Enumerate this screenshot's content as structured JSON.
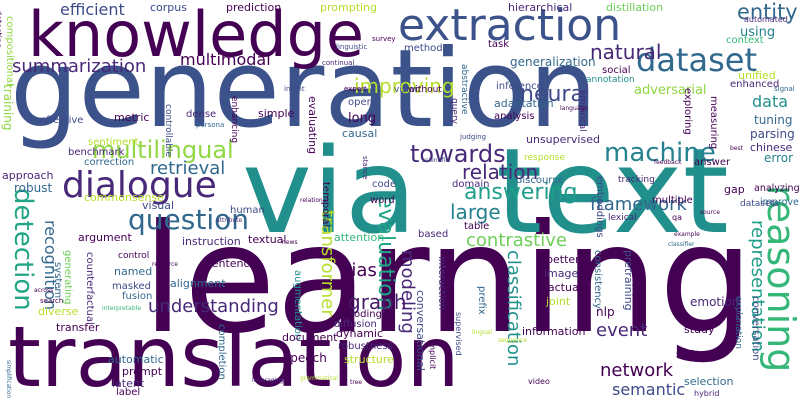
{
  "words": [
    {
      "text": "learning",
      "color": "#440154"
    },
    {
      "text": "generation",
      "color": "#3b528b"
    },
    {
      "text": "translation",
      "color": "#440154"
    },
    {
      "text": "via",
      "color": "#21908d"
    },
    {
      "text": "text",
      "color": "#21908d"
    },
    {
      "text": "knowledge",
      "color": "#440154"
    },
    {
      "text": "extraction",
      "color": "#3b528b"
    },
    {
      "text": "dialogue",
      "color": "#482878"
    },
    {
      "text": "question",
      "color": "#31688e"
    },
    {
      "text": "reasoning",
      "color": "#35b779"
    },
    {
      "text": "dataset",
      "color": "#31688e"
    },
    {
      "text": "machine",
      "color": "#26828e"
    },
    {
      "text": "multilingual",
      "color": "#90d743"
    },
    {
      "text": "summarization",
      "color": "#482878"
    },
    {
      "text": "towards",
      "color": "#482878"
    },
    {
      "text": "detection",
      "color": "#21a585"
    },
    {
      "text": "efficient",
      "color": "#3e4a89"
    },
    {
      "text": "entity",
      "color": "#31688e"
    },
    {
      "text": "answering",
      "color": "#1f9e89"
    },
    {
      "text": "relation",
      "color": "#482878"
    },
    {
      "text": "improving",
      "color": "#b5de2b"
    },
    {
      "text": "natural",
      "color": "#482878"
    },
    {
      "text": "neural",
      "color": "#3e4a89"
    },
    {
      "text": "evaluation",
      "color": "#21a585"
    },
    {
      "text": "large",
      "color": "#26828e"
    },
    {
      "text": "contrastive",
      "color": "#6ece58"
    },
    {
      "text": "framework",
      "color": "#31688e"
    },
    {
      "text": "retrieval",
      "color": "#31688e"
    },
    {
      "text": "multimodal",
      "color": "#440154"
    },
    {
      "text": "representation",
      "color": "#1f9e89"
    },
    {
      "text": "classification",
      "color": "#21918c"
    },
    {
      "text": "modeling",
      "color": "#482878"
    },
    {
      "text": "graph",
      "color": "#481a6c"
    },
    {
      "text": "understanding",
      "color": "#482878"
    },
    {
      "text": "recognition",
      "color": "#31688e"
    },
    {
      "text": "transformer",
      "color": "#b5de2b"
    },
    {
      "text": "network",
      "color": "#440154"
    },
    {
      "text": "semantic",
      "color": "#3e4a89"
    },
    {
      "text": "event",
      "color": "#482878"
    },
    {
      "text": "bias",
      "color": "#440154"
    },
    {
      "text": "data",
      "color": "#21908d"
    },
    {
      "text": "adversarial",
      "color": "#90d743"
    },
    {
      "text": "generalization",
      "color": "#31688e"
    },
    {
      "text": "using",
      "color": "#26828e"
    },
    {
      "text": "corpus",
      "color": "#3e4a89"
    },
    {
      "text": "prediction",
      "color": "#440154"
    },
    {
      "text": "prompting",
      "color": "#b5de2b"
    },
    {
      "text": "hierarchical",
      "color": "#482878"
    },
    {
      "text": "distillation",
      "color": "#6ece58"
    },
    {
      "text": "context",
      "color": "#35b779"
    },
    {
      "text": "method",
      "color": "#3e4a89"
    },
    {
      "text": "task",
      "color": "#440154"
    },
    {
      "text": "unified",
      "color": "#b5de2b"
    },
    {
      "text": "enhanced",
      "color": "#482878"
    },
    {
      "text": "tuning",
      "color": "#31688e"
    },
    {
      "text": "parsing",
      "color": "#3e4a89"
    },
    {
      "text": "error",
      "color": "#26828e"
    },
    {
      "text": "chinese",
      "color": "#482878"
    },
    {
      "text": "analysis",
      "color": "#440154"
    },
    {
      "text": "adaptation",
      "color": "#31688e"
    },
    {
      "text": "inference",
      "color": "#3e4a89"
    },
    {
      "text": "social",
      "color": "#440154"
    },
    {
      "text": "annotation",
      "color": "#21908d"
    },
    {
      "text": "vision",
      "color": "#3e4a89"
    },
    {
      "text": "without",
      "color": "#440154"
    },
    {
      "text": "unsupervised",
      "color": "#482878"
    },
    {
      "text": "long",
      "color": "#440154"
    },
    {
      "text": "open",
      "color": "#3e4a89"
    },
    {
      "text": "simple",
      "color": "#440154"
    },
    {
      "text": "dense",
      "color": "#482878"
    },
    {
      "text": "metric",
      "color": "#440154"
    },
    {
      "text": "effective",
      "color": "#3e4a89"
    },
    {
      "text": "benchmark",
      "color": "#482878"
    },
    {
      "text": "correction",
      "color": "#31688e"
    },
    {
      "text": "sentiment",
      "color": "#b5de2b"
    },
    {
      "text": "approach",
      "color": "#482878"
    },
    {
      "text": "robust",
      "color": "#31688e"
    },
    {
      "text": "commonsense",
      "color": "#b5de2b"
    },
    {
      "text": "visual",
      "color": "#3e4a89"
    },
    {
      "text": "argument",
      "color": "#440154"
    },
    {
      "text": "generating",
      "color": "#6ece58"
    },
    {
      "text": "system",
      "color": "#31688e"
    },
    {
      "text": "counterfactual",
      "color": "#482878"
    },
    {
      "text": "named",
      "color": "#31688e"
    },
    {
      "text": "masked",
      "color": "#3e4a89"
    },
    {
      "text": "fusion",
      "color": "#31688e"
    },
    {
      "text": "diverse",
      "color": "#b5de2b"
    },
    {
      "text": "transfer",
      "color": "#440154"
    },
    {
      "text": "automatic",
      "color": "#31688e"
    },
    {
      "text": "prompt",
      "color": "#440154"
    },
    {
      "text": "latent",
      "color": "#482878"
    },
    {
      "text": "label",
      "color": "#440154"
    },
    {
      "text": "sentence",
      "color": "#440154"
    },
    {
      "text": "alignment",
      "color": "#31688e"
    },
    {
      "text": "instruction",
      "color": "#482878"
    },
    {
      "text": "textual",
      "color": "#440154"
    },
    {
      "text": "human",
      "color": "#3e4a89"
    },
    {
      "text": "control",
      "color": "#440154"
    },
    {
      "text": "controllable",
      "color": "#3e4a89"
    },
    {
      "text": "enhancing",
      "color": "#440154"
    },
    {
      "text": "evaluating",
      "color": "#440154"
    },
    {
      "text": "causal",
      "color": "#31688e"
    },
    {
      "text": "temporal",
      "color": "#440154"
    },
    {
      "text": "attention",
      "color": "#35b779"
    },
    {
      "text": "augmentation",
      "color": "#21908d"
    },
    {
      "text": "dynamic",
      "color": "#440154"
    },
    {
      "text": "decoding",
      "color": "#440154"
    },
    {
      "text": "diffusion",
      "color": "#482878"
    },
    {
      "text": "robustness",
      "color": "#482878"
    },
    {
      "text": "completion",
      "color": "#31688e"
    },
    {
      "text": "document",
      "color": "#440154"
    },
    {
      "text": "speech",
      "color": "#440154"
    },
    {
      "text": "structure",
      "color": "#b5de2b"
    },
    {
      "text": "conversational",
      "color": "#3e4a89"
    },
    {
      "text": "interaction",
      "color": "#482878"
    },
    {
      "text": "based",
      "color": "#482878"
    },
    {
      "text": "code",
      "color": "#3e4a89"
    },
    {
      "text": "word",
      "color": "#440154"
    },
    {
      "text": "domain",
      "color": "#482878"
    },
    {
      "text": "discourse",
      "color": "#31688e"
    },
    {
      "text": "response",
      "color": "#b5de2b"
    },
    {
      "text": "table",
      "color": "#440154"
    },
    {
      "text": "prefix",
      "color": "#31688e"
    },
    {
      "text": "image",
      "color": "#482878"
    },
    {
      "text": "factual",
      "color": "#440154"
    },
    {
      "text": "better",
      "color": "#440154"
    },
    {
      "text": "joint",
      "color": "#b5de2b"
    },
    {
      "text": "information",
      "color": "#440154"
    },
    {
      "text": "nlp",
      "color": "#440154"
    },
    {
      "text": "consistency",
      "color": "#31688e"
    },
    {
      "text": "pretraining",
      "color": "#3e4a89"
    },
    {
      "text": "emotion",
      "color": "#482878"
    },
    {
      "text": "explanation",
      "color": "#31688e"
    },
    {
      "text": "conversation",
      "color": "#3e4a89"
    },
    {
      "text": "study",
      "color": "#440154"
    },
    {
      "text": "answer",
      "color": "#440154"
    },
    {
      "text": "exploring",
      "color": "#440154"
    },
    {
      "text": "embeddings",
      "color": "#3e4a89"
    },
    {
      "text": "tracking",
      "color": "#482878"
    },
    {
      "text": "multiple",
      "color": "#440154"
    },
    {
      "text": "lexical",
      "color": "#482878"
    },
    {
      "text": "gap",
      "color": "#440154"
    },
    {
      "text": "improve",
      "color": "#31688e"
    },
    {
      "text": "analyzing",
      "color": "#440154"
    },
    {
      "text": "datasets",
      "color": "#3e4a89"
    },
    {
      "text": "selection",
      "color": "#31688e"
    },
    {
      "text": "state",
      "color": "#440154"
    },
    {
      "text": "hybrid",
      "color": "#482878"
    },
    {
      "text": "video",
      "color": "#440154"
    },
    {
      "text": "measuring",
      "color": "#440154"
    },
    {
      "text": "empirical",
      "color": "#482878"
    },
    {
      "text": "signal",
      "color": "#31688e"
    },
    {
      "text": "automated",
      "color": "#482878"
    },
    {
      "text": "compositional",
      "color": "#90d743"
    },
    {
      "text": "training",
      "color": "#90d743"
    },
    {
      "text": "detecting",
      "color": "#440154"
    },
    {
      "text": "continual",
      "color": "#482878"
    },
    {
      "text": "linguistic",
      "color": "#3e4a89"
    },
    {
      "text": "survey",
      "color": "#440154"
    },
    {
      "text": "intent",
      "color": "#3e4a89"
    },
    {
      "text": "expert",
      "color": "#440154"
    },
    {
      "text": "persona",
      "color": "#31688e"
    },
    {
      "text": "abstractive",
      "color": "#31688e"
    },
    {
      "text": "query",
      "color": "#482878"
    },
    {
      "text": "judging",
      "color": "#3e4a89"
    },
    {
      "text": "scientific",
      "color": "#3e4a89"
    },
    {
      "text": "feedback",
      "color": "#440154"
    },
    {
      "text": "best",
      "color": "#440154"
    },
    {
      "text": "stance",
      "color": "#482878"
    },
    {
      "text": "qa",
      "color": "#440154"
    },
    {
      "text": "attribute",
      "color": "#482878"
    },
    {
      "text": "resource",
      "color": "#440154"
    },
    {
      "text": "search",
      "color": "#440154"
    },
    {
      "text": "across",
      "color": "#440154"
    },
    {
      "text": "news",
      "color": "#440154"
    },
    {
      "text": "classifier",
      "color": "#31688e"
    },
    {
      "text": "example",
      "color": "#440154"
    },
    {
      "text": "simplification",
      "color": "#31688e"
    },
    {
      "text": "leveraging",
      "color": "#482878"
    },
    {
      "text": "tree",
      "color": "#440154"
    },
    {
      "text": "grammatical",
      "color": "#b5de2b"
    },
    {
      "text": "interpretable",
      "color": "#35b779"
    },
    {
      "text": "implicit",
      "color": "#440154"
    },
    {
      "text": "supervised",
      "color": "#3e4a89"
    },
    {
      "text": "lingual",
      "color": "#b5de2b"
    },
    {
      "text": "sequence",
      "color": "#b5de2b"
    },
    {
      "text": "relational",
      "color": "#440154"
    },
    {
      "text": "language",
      "color": "#440154"
    },
    {
      "text": "source",
      "color": "#440154"
    }
  ]
}
